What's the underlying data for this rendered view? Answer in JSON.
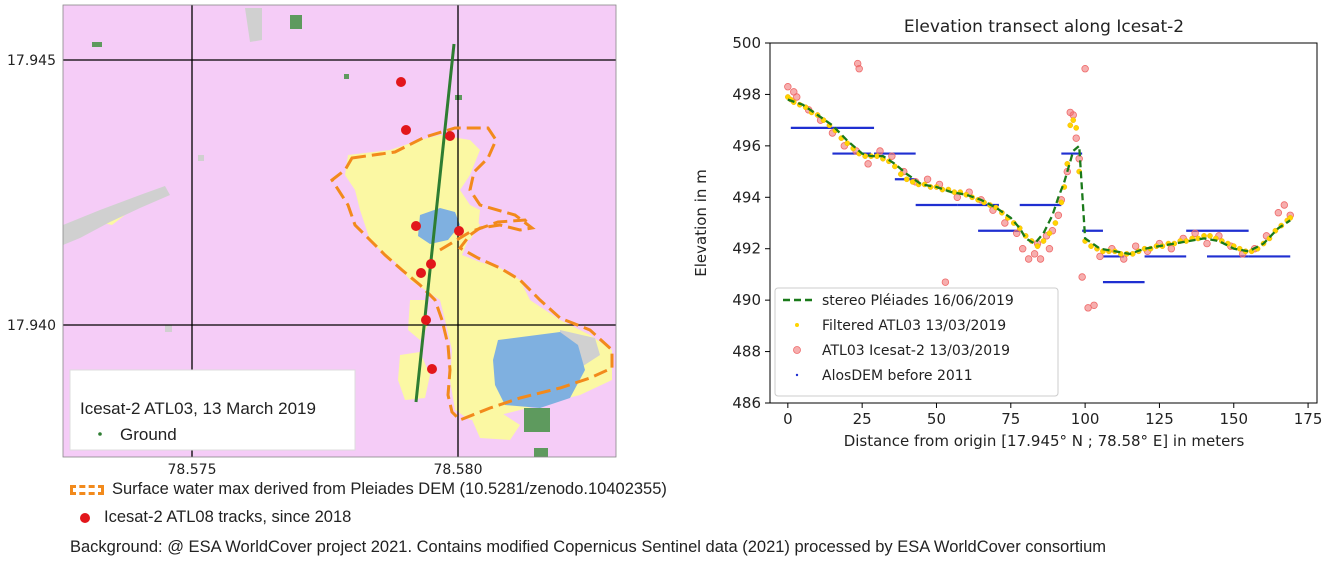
{
  "map": {
    "x_ticks": [
      "78.575",
      "78.580"
    ],
    "y_ticks": [
      "17.945",
      "17.940"
    ],
    "legend_title": "Icesat-2 ATL03, 13 March 2019",
    "legend_item": "Ground",
    "colors": {
      "background": "#f5ccf7",
      "cropland": "#fbf8a3",
      "water": "#7fb0e0",
      "tree": "#5e9a5e",
      "built": "#d0d0d0",
      "surface_water_outline": "#f28a1c",
      "atl08": "#e2161b",
      "ground_track": "#2e7d32"
    }
  },
  "notes": {
    "surface_water": "Surface water max derived from Pleiades DEM (10.5281/zenodo.10402355)",
    "atl08": "Icesat-2 ATL08 tracks, since 2018",
    "background": "Background: @ ESA WorldCover project 2021. Contains modified Copernicus Sentinel data (2021) processed by ESA WorldCover consortium"
  },
  "chart_data": {
    "type": "scatter",
    "title": "Elevation transect along Icesat-2",
    "xlabel": "Distance from origin [17.945° N ; 78.58° E] in meters",
    "ylabel": "Elevation in m",
    "xlim": [
      -6,
      178
    ],
    "ylim": [
      486,
      500
    ],
    "xticks": [
      0,
      25,
      50,
      75,
      100,
      125,
      150,
      175
    ],
    "yticks": [
      486,
      488,
      490,
      492,
      494,
      496,
      498,
      500
    ],
    "legend_position": "lower-left",
    "series": [
      {
        "name": "stereo Pléiades 16/06/2019",
        "kind": "dashed-line",
        "color": "#1a7a1a",
        "x": [
          0,
          5,
          10,
          15,
          20,
          25,
          28,
          32,
          36,
          40,
          45,
          50,
          55,
          60,
          65,
          70,
          75,
          78,
          80,
          83,
          86,
          89,
          91,
          93,
          95,
          96,
          97,
          98,
          100,
          105,
          110,
          115,
          120,
          125,
          130,
          135,
          140,
          145,
          150,
          155,
          160,
          165,
          169
        ],
        "y": [
          497.8,
          497.6,
          497.2,
          496.8,
          496.2,
          495.7,
          495.6,
          495.6,
          495.3,
          494.9,
          494.5,
          494.4,
          494.2,
          494.1,
          493.9,
          493.6,
          493.2,
          492.8,
          492.4,
          492.2,
          492.6,
          493.3,
          494.0,
          494.6,
          495.4,
          495.8,
          495.9,
          496.0,
          492.4,
          492.0,
          491.9,
          491.8,
          492.0,
          492.1,
          492.2,
          492.3,
          492.4,
          492.3,
          492.0,
          491.9,
          492.2,
          492.8,
          493.1
        ]
      },
      {
        "name": "Filtered ATL03 13/03/2019",
        "kind": "points",
        "color": "#ffd400",
        "x": [
          0,
          1,
          2,
          4,
          6,
          8,
          10,
          12,
          14,
          16,
          18,
          20,
          22,
          24,
          26,
          28,
          30,
          32,
          34,
          36,
          38,
          40,
          42,
          44,
          46,
          48,
          50,
          52,
          54,
          56,
          58,
          60,
          62,
          64,
          66,
          68,
          70,
          72,
          74,
          76,
          78,
          80,
          82,
          84,
          86,
          88,
          90,
          92,
          93,
          94,
          95,
          96,
          97,
          98,
          100,
          102,
          104,
          106,
          108,
          110,
          112,
          114,
          116,
          118,
          120,
          122,
          124,
          126,
          128,
          130,
          132,
          134,
          136,
          138,
          140,
          142,
          144,
          146,
          148,
          150,
          152,
          154,
          156,
          158,
          160,
          162,
          164,
          166,
          168,
          169
        ],
        "y": [
          497.9,
          497.8,
          497.7,
          497.6,
          497.5,
          497.3,
          497.2,
          497.0,
          496.8,
          496.6,
          496.3,
          496.1,
          495.9,
          495.7,
          495.6,
          495.6,
          495.6,
          495.5,
          495.4,
          495.2,
          494.9,
          494.7,
          494.6,
          494.5,
          494.5,
          494.4,
          494.4,
          494.3,
          494.3,
          494.2,
          494.2,
          494.1,
          494.0,
          493.9,
          493.8,
          493.7,
          493.6,
          493.4,
          493.2,
          493.0,
          492.8,
          492.5,
          492.3,
          492.1,
          492.3,
          492.6,
          493.0,
          493.8,
          494.4,
          495.3,
          496.8,
          497.0,
          496.7,
          495.0,
          492.3,
          492.1,
          492.0,
          491.9,
          491.9,
          491.9,
          491.8,
          491.8,
          491.8,
          491.9,
          492.0,
          492.0,
          492.1,
          492.1,
          492.2,
          492.2,
          492.3,
          492.3,
          492.4,
          492.4,
          492.5,
          492.5,
          492.4,
          492.3,
          492.2,
          492.1,
          492.0,
          491.9,
          491.9,
          492.0,
          492.2,
          492.4,
          492.7,
          492.9,
          493.1,
          493.2
        ]
      },
      {
        "name": "ATL03 Icesat-2 13/03/2019",
        "kind": "points",
        "color": "#ef6b6b",
        "x": [
          0,
          2,
          3,
          7,
          11,
          15,
          19,
          23,
          23.5,
          24,
          27,
          31,
          35,
          39,
          43,
          47,
          51,
          53,
          57,
          61,
          65,
          69,
          73,
          77,
          79,
          81,
          83,
          84,
          85,
          87,
          88,
          89,
          91,
          92,
          94,
          95,
          96,
          97,
          98,
          99,
          100,
          101,
          103,
          105,
          109,
          113,
          117,
          121,
          125,
          129,
          133,
          137,
          141,
          145,
          149,
          153,
          157,
          161,
          165,
          167,
          169
        ],
        "y": [
          498.3,
          498.1,
          497.9,
          497.4,
          497.0,
          496.5,
          496.0,
          495.8,
          499.2,
          499.0,
          495.3,
          495.8,
          495.6,
          495.0,
          494.6,
          494.7,
          494.5,
          490.7,
          494.0,
          494.2,
          493.9,
          493.5,
          493.0,
          492.6,
          492.0,
          491.6,
          491.8,
          492.2,
          491.6,
          492.5,
          492.0,
          492.7,
          493.3,
          493.9,
          495.0,
          497.3,
          497.2,
          496.3,
          495.5,
          490.9,
          499.0,
          489.7,
          489.8,
          491.7,
          492.0,
          491.6,
          492.1,
          491.9,
          492.2,
          492.0,
          492.4,
          492.6,
          492.2,
          492.5,
          492.1,
          491.8,
          492.0,
          492.5,
          493.4,
          493.7,
          493.3
        ]
      },
      {
        "name": "AlosDEM before 2011",
        "kind": "step",
        "color": "#1f2fd1",
        "segments": [
          {
            "x0": 1,
            "x1": 15,
            "y": 496.7
          },
          {
            "x0": 15,
            "x1": 29,
            "y": 496.7
          },
          {
            "x0": 15,
            "x1": 28,
            "y": 495.7
          },
          {
            "x0": 29,
            "x1": 43,
            "y": 495.7
          },
          {
            "x0": 36,
            "x1": 43,
            "y": 494.7
          },
          {
            "x0": 43,
            "x1": 57,
            "y": 493.7
          },
          {
            "x0": 57,
            "x1": 71,
            "y": 493.7
          },
          {
            "x0": 64,
            "x1": 78,
            "y": 492.7
          },
          {
            "x0": 78,
            "x1": 92,
            "y": 493.7
          },
          {
            "x0": 92,
            "x1": 99,
            "y": 495.7
          },
          {
            "x0": 99,
            "x1": 106,
            "y": 492.7
          },
          {
            "x0": 106,
            "x1": 113,
            "y": 491.7
          },
          {
            "x0": 106,
            "x1": 120,
            "y": 490.7
          },
          {
            "x0": 120,
            "x1": 134,
            "y": 491.7
          },
          {
            "x0": 134,
            "x1": 155,
            "y": 492.7
          },
          {
            "x0": 141,
            "x1": 155,
            "y": 491.7
          },
          {
            "x0": 155,
            "x1": 169,
            "y": 491.7
          }
        ]
      }
    ]
  }
}
